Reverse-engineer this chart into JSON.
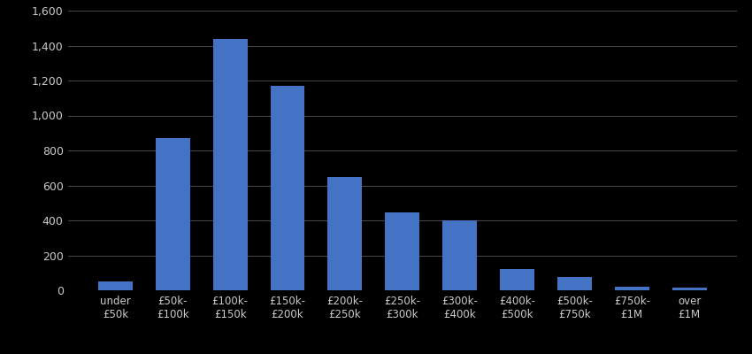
{
  "categories": [
    "under\n£50k",
    "£50k-\n£100k",
    "£100k-\n£150k",
    "£150k-\n£200k",
    "£200k-\n£250k",
    "£250k-\n£300k",
    "£300k-\n£400k",
    "£400k-\n£500k",
    "£500k-\n£750k",
    "£750k-\n£1M",
    "over\n£1M"
  ],
  "values": [
    50,
    870,
    1440,
    1170,
    650,
    445,
    400,
    120,
    75,
    20,
    15
  ],
  "bar_color": "#4472C4",
  "background_color": "#000000",
  "text_color": "#cccccc",
  "grid_color": "#555555",
  "ylim": [
    0,
    1600
  ],
  "yticks": [
    0,
    200,
    400,
    600,
    800,
    1000,
    1200,
    1400,
    1600
  ],
  "bar_width": 0.6,
  "figsize": [
    8.5,
    4.0
  ],
  "dpi": 100
}
